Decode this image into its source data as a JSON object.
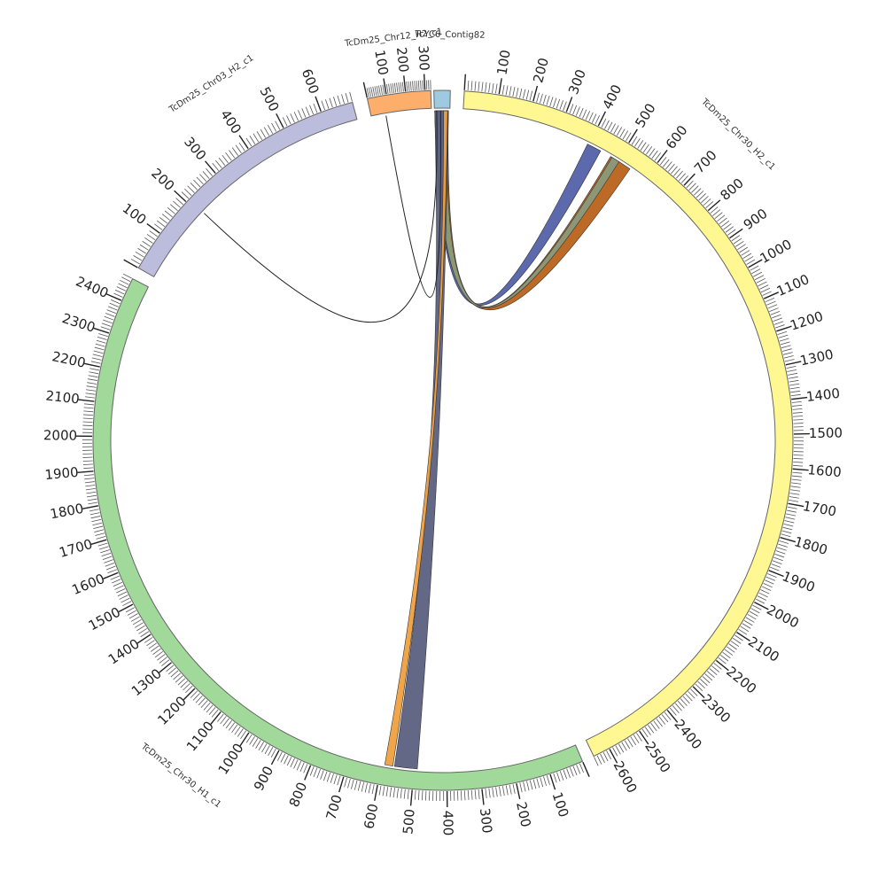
{
  "segments": [
    {
      "id": "contig82",
      "name": "TcYC6_Contig82",
      "color": "#9ecae1",
      "start_deg": -1.5,
      "end_deg": 1.2,
      "length": 20,
      "tick_step": null
    },
    {
      "id": "chr30h2",
      "name": "TcDm25_Chr30_H2_c1",
      "color": "#fff791",
      "start_deg": 3.5,
      "end_deg": 154.5,
      "length": 2650,
      "tick_step": 100
    },
    {
      "id": "chr30h1",
      "name": "TcDm25_Chr30_H1_c1",
      "color": "#a1d99b",
      "start_deg": 156.5,
      "end_deg": 297.5,
      "length": 2470,
      "tick_step": 100
    },
    {
      "id": "chr03h2",
      "name": "TcDm25_Chr03_H2_c1",
      "color": "#bcbddc",
      "start_deg": 299.5,
      "end_deg": 345.0,
      "length": 680,
      "tick_step": 100
    },
    {
      "id": "chr12h2",
      "name": "TcDm25_Chr12_H2_c1",
      "color": "#fdae6b",
      "start_deg": 347.5,
      "end_deg": 358.0,
      "length": 330,
      "tick_step": 100
    }
  ],
  "ribbons": [
    {
      "from": {
        "seg": "contig82",
        "a": 0.5,
        "b": 18
      },
      "to": {
        "seg": "chr30h2",
        "a": 395,
        "b": 440
      },
      "color": "#5361a8"
    },
    {
      "from": {
        "seg": "contig82",
        "a": 0.5,
        "b": 18
      },
      "to": {
        "seg": "chr30h2",
        "a": 475,
        "b": 545
      },
      "color": "#b8621a"
    },
    {
      "from": {
        "seg": "contig82",
        "a": 2,
        "b": 16
      },
      "to": {
        "seg": "chr30h2",
        "a": 480,
        "b": 505
      },
      "color": "#8a9a7a"
    },
    {
      "from": {
        "seg": "contig82",
        "a": 0.5,
        "b": 18
      },
      "to": {
        "seg": "chr30h1",
        "a": 490,
        "b": 560
      },
      "color": "#5a6080"
    },
    {
      "from": {
        "seg": "contig82",
        "a": 12,
        "b": 17
      },
      "to": {
        "seg": "chr30h1",
        "a": 565,
        "b": 590
      },
      "color": "#f0a040"
    }
  ],
  "links": [
    {
      "from": {
        "seg": "contig82",
        "pos": 3
      },
      "to": {
        "seg": "chr03h2",
        "pos": 210
      },
      "color": "#222222"
    },
    {
      "from": {
        "seg": "contig82",
        "pos": 8
      },
      "to": {
        "seg": "chr12h2",
        "pos": 80
      },
      "color": "#222222"
    }
  ]
}
